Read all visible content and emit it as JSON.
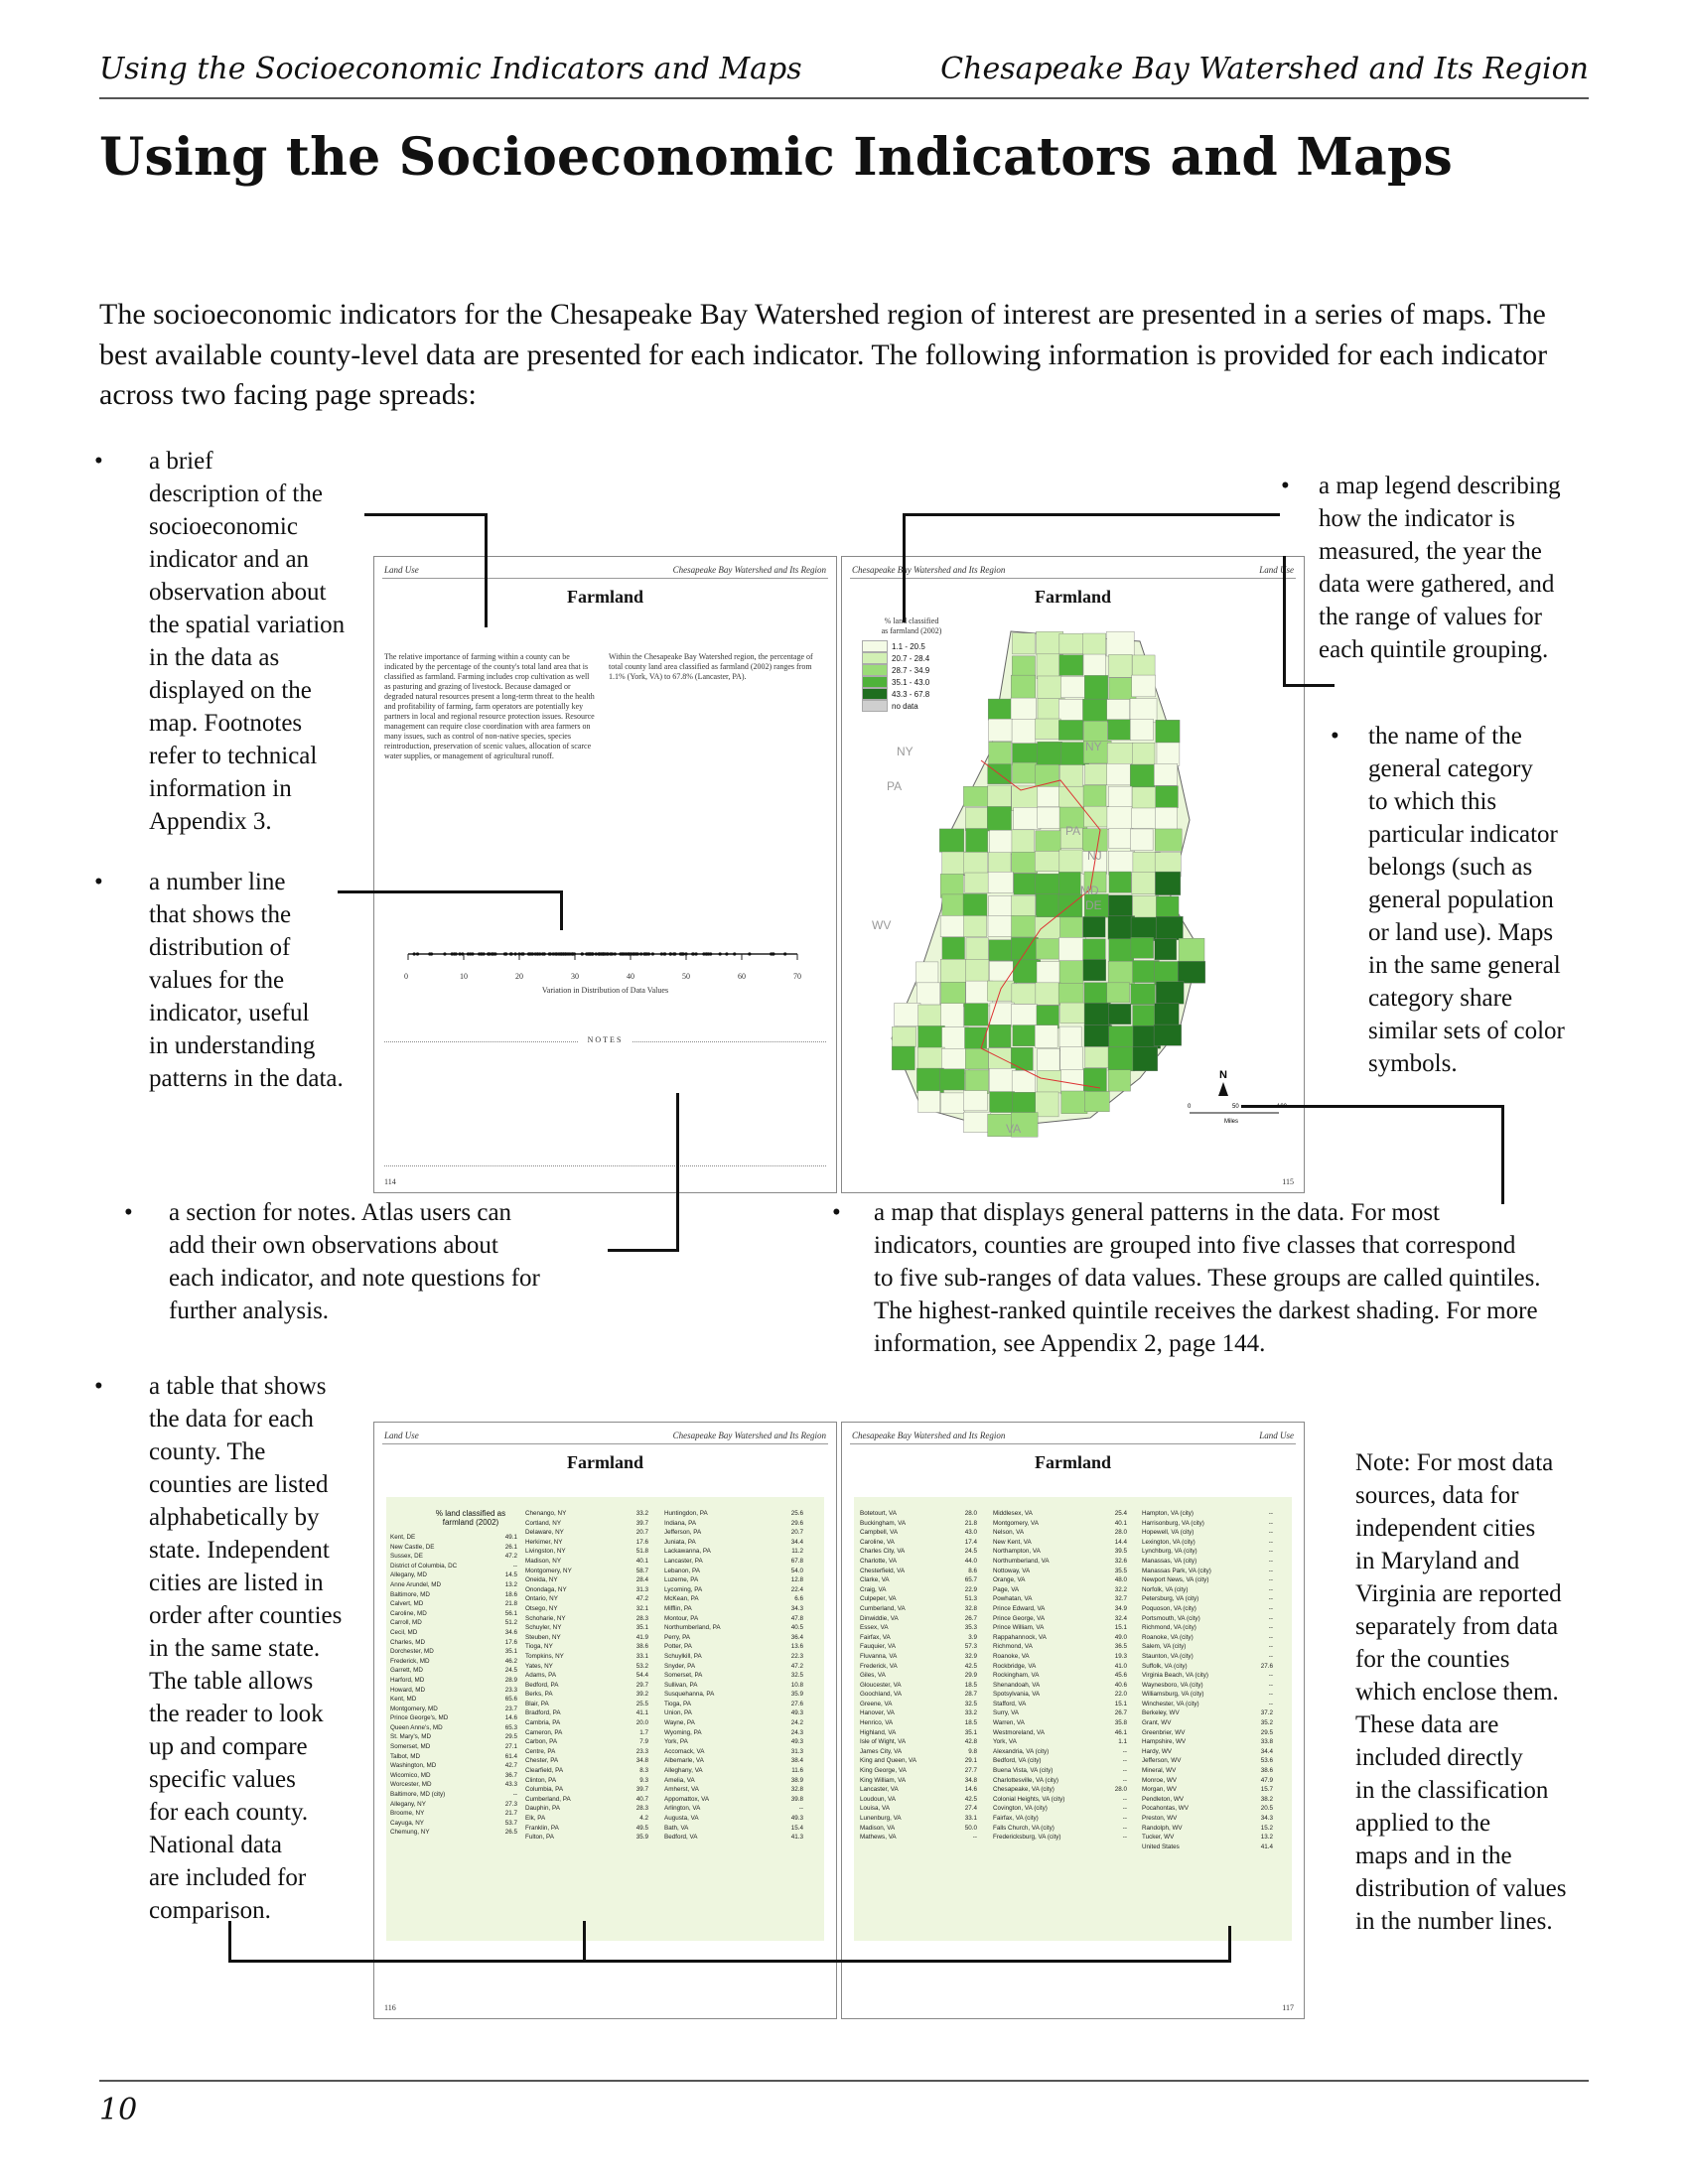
{
  "header": {
    "left": "Using the Socioeconomic Indicators and Maps",
    "right": "Chesapeake Bay Watershed and Its Region"
  },
  "title": "Using the Socioeconomic Indicators and Maps",
  "intro": "The socioeconomic indicators for the Chesapeake Bay Watershed region of interest are presented in a series of maps. The best available county-level data are presented for each indicator. The following information is provided for each indicator across two facing page spreads:",
  "bullets": {
    "description": "a brief\ndescription of the\nsocioeconomic\nindicator and an\nobservation about\nthe spatial variation\nin the data as\ndisplayed on the\nmap. Footnotes\nrefer to technical\ninformation in\nAppendix 3.",
    "number_line": "a number line\nthat shows the\ndistribution of\nvalues for the\nindicator, useful\nin understanding\npatterns in the data.",
    "legend": "a map legend describing\nhow the indicator is\nmeasured, the year the\ndata were gathered, and\nthe range of values for\neach quintile grouping.",
    "category": "the name of the\ngeneral category\nto which this\nparticular indicator\nbelongs (such as\ngeneral population\nor land use). Maps\nin the same general\ncategory share\nsimilar sets of color\nsymbols.",
    "notes": "a section for notes. Atlas users can\nadd their own observations about\neach indicator, and note questions for\nfurther analysis.",
    "map": "a map that displays general patterns in the data. For most\nindicators, counties are grouped into five classes that correspond\nto five sub-ranges of data values. These groups are called quintiles.\nThe highest-ranked quintile receives the darkest shading. For more\ninformation, see Appendix 2, page 144.",
    "table": "a table that shows\nthe data for each\ncounty. The\ncounties are listed\nalphabetically by\nstate. Independent\ncities are listed in\norder after counties\nin the same state.\nThe table allows\nthe reader to look\nup and compare\nspecific values\nfor each county.\nNational data\nare included for\ncomparison."
  },
  "side_note": "Note: For most data\nsources, data for\nindependent cities\nin Maryland and\nVirginia are reported\nseparately from data\nfor the counties\nwhich enclose them.\nThese data are\nincluded directly\nin the classification\napplied to the\nmaps  and in the\ndistribution of values\nin the number lines.",
  "spread1": {
    "left_header": "Land Use",
    "right_header_left": "Chesapeake Bay Watershed and Its Region",
    "map_header_left": "Chesapeake Bay Watershed and Its Region",
    "map_header_right": "Land Use",
    "page_title": "Farmland",
    "desc_left": "The relative importance of farming within a county can be indicated by the percentage of the county's total land area that is classified as farmland. Farming includes crop cultivation as well as pasturing and grazing of livestock. Because damaged or degraded natural resources present a long-term threat to the health and profitability of farming, farm operators are potentially key partners in local and regional resource protection issues. Resource management can require close coordination with area farmers on many issues, such as control of non-native species, species reintroduction, preservation of scenic values, allocation of scarce water supplies, or management of agricultural runoff.",
    "desc_right": "Within the Chesapeake Bay Watershed region, the percentage of total county land area classified as farmland (2002) ranges from 1.1% (York, VA) to 67.8% (Lancaster, PA).",
    "axis_ticks": [
      "0",
      "10",
      "20",
      "30",
      "40",
      "50",
      "60",
      "70"
    ],
    "axis_label": "Variation in Distribution of Data Values",
    "notes_label": "NOTES",
    "page_left": "114",
    "page_right": "115",
    "legend_title": "% land classified\nas farmland (2002)",
    "legend": [
      {
        "label": "1.1 - 20.5",
        "color": "#f4fbe6"
      },
      {
        "label": "20.7 - 28.4",
        "color": "#d2f0b4"
      },
      {
        "label": "28.7 - 34.9",
        "color": "#9bdc78"
      },
      {
        "label": "35.1 - 43.0",
        "color": "#4fb23a"
      },
      {
        "label": "43.3 - 67.8",
        "color": "#1f6e1f"
      },
      {
        "label": "no data",
        "color": "#cfcfcf"
      }
    ],
    "states": [
      "NY",
      "NY",
      "PA",
      "PA",
      "NJ",
      "DE",
      "WV",
      "VA",
      "MD"
    ],
    "scale_labels": [
      "0",
      "50",
      "100"
    ],
    "scale_unit": "Miles",
    "north": "N"
  },
  "spread2": {
    "left_header": "Land Use",
    "right_header_left": "Chesapeake Bay Watershed and Its Region",
    "right_header_right": "Land Use",
    "page_title": "Farmland",
    "table_caption": "% land classified as\nfarmland (2002)",
    "page_left": "116",
    "page_right": "117",
    "col1": [
      [
        "Kent, DE",
        "49.1"
      ],
      [
        "New Castle, DE",
        "26.1"
      ],
      [
        "Sussex, DE",
        "47.2"
      ],
      [
        "District of Columbia, DC",
        "--"
      ],
      [
        "Allegany, MD",
        "14.5"
      ],
      [
        "Anne Arundel, MD",
        "13.2"
      ],
      [
        "Baltimore, MD",
        "18.6"
      ],
      [
        "Calvert, MD",
        "21.8"
      ],
      [
        "Caroline, MD",
        "56.1"
      ],
      [
        "Carroll, MD",
        "51.2"
      ],
      [
        "Cecil, MD",
        "34.6"
      ],
      [
        "Charles, MD",
        "17.6"
      ],
      [
        "Dorchester, MD",
        "35.1"
      ],
      [
        "Frederick, MD",
        "46.2"
      ],
      [
        "Garrett, MD",
        "24.5"
      ],
      [
        "Harford, MD",
        "28.9"
      ],
      [
        "Howard, MD",
        "23.3"
      ],
      [
        "Kent, MD",
        "65.6"
      ],
      [
        "Montgomery, MD",
        "23.7"
      ],
      [
        "Prince George's, MD",
        "14.6"
      ],
      [
        "Queen Anne's, MD",
        "65.3"
      ],
      [
        "St. Mary's, MD",
        "29.5"
      ],
      [
        "Somerset, MD",
        "27.1"
      ],
      [
        "Talbot, MD",
        "61.4"
      ],
      [
        "Washington, MD",
        "42.7"
      ],
      [
        "Wicomico, MD",
        "36.7"
      ],
      [
        "Worcester, MD",
        "43.3"
      ],
      [
        "Baltimore, MD (city)",
        "--"
      ],
      [
        "Allegany, NY",
        "27.3"
      ],
      [
        "Broome, NY",
        "21.7"
      ],
      [
        "Cayuga, NY",
        "53.7"
      ],
      [
        "Chemung, NY",
        "26.5"
      ]
    ],
    "col2": [
      [
        "Chenango, NY",
        "33.2"
      ],
      [
        "Cortland, NY",
        "39.7"
      ],
      [
        "Delaware, NY",
        "20.7"
      ],
      [
        "Herkimer, NY",
        "17.6"
      ],
      [
        "Livingston, NY",
        "51.8"
      ],
      [
        "Madison, NY",
        "40.1"
      ],
      [
        "Montgomery, NY",
        "58.7"
      ],
      [
        "Oneida, NY",
        "28.4"
      ],
      [
        "Onondaga, NY",
        "31.3"
      ],
      [
        "Ontario, NY",
        "47.2"
      ],
      [
        "Otsego, NY",
        "32.1"
      ],
      [
        "Schoharie, NY",
        "28.3"
      ],
      [
        "Schuyler, NY",
        "35.1"
      ],
      [
        "Steuben, NY",
        "41.9"
      ],
      [
        "Tioga, NY",
        "38.6"
      ],
      [
        "Tompkins, NY",
        "33.1"
      ],
      [
        "Yates, NY",
        "53.2"
      ],
      [
        "Adams, PA",
        "54.4"
      ],
      [
        "Bedford, PA",
        "29.7"
      ],
      [
        "Berks, PA",
        "39.2"
      ],
      [
        "Blair, PA",
        "25.5"
      ],
      [
        "Bradford, PA",
        "41.1"
      ],
      [
        "Cambria, PA",
        "20.0"
      ],
      [
        "Cameron, PA",
        "1.7"
      ],
      [
        "Carbon, PA",
        "7.9"
      ],
      [
        "Centre, PA",
        "23.3"
      ],
      [
        "Chester, PA",
        "34.8"
      ],
      [
        "Clearfield, PA",
        "8.3"
      ],
      [
        "Clinton, PA",
        "9.3"
      ],
      [
        "Columbia, PA",
        "39.7"
      ],
      [
        "Cumberland, PA",
        "40.7"
      ],
      [
        "Dauphin, PA",
        "28.3"
      ],
      [
        "Elk, PA",
        "4.2"
      ],
      [
        "Franklin, PA",
        "49.5"
      ],
      [
        "Fulton, PA",
        "35.9"
      ]
    ],
    "col3": [
      [
        "Huntingdon, PA",
        "25.6"
      ],
      [
        "Indiana, PA",
        "29.6"
      ],
      [
        "Jefferson, PA",
        "20.7"
      ],
      [
        "Juniata, PA",
        "34.4"
      ],
      [
        "Lackawanna, PA",
        "11.2"
      ],
      [
        "Lancaster, PA",
        "67.8"
      ],
      [
        "Lebanon, PA",
        "54.0"
      ],
      [
        "Luzerne, PA",
        "12.8"
      ],
      [
        "Lycoming, PA",
        "22.4"
      ],
      [
        "McKean, PA",
        "6.6"
      ],
      [
        "Mifflin, PA",
        "34.3"
      ],
      [
        "Montour, PA",
        "47.8"
      ],
      [
        "Northumberland, PA",
        "40.5"
      ],
      [
        "Perry, PA",
        "36.4"
      ],
      [
        "Potter, PA",
        "13.6"
      ],
      [
        "Schuylkill, PA",
        "22.3"
      ],
      [
        "Snyder, PA",
        "47.2"
      ],
      [
        "Somerset, PA",
        "32.5"
      ],
      [
        "Sullivan, PA",
        "10.8"
      ],
      [
        "Susquehanna, PA",
        "35.9"
      ],
      [
        "Tioga, PA",
        "27.6"
      ],
      [
        "Union, PA",
        "49.3"
      ],
      [
        "Wayne, PA",
        "24.2"
      ],
      [
        "Wyoming, PA",
        "24.3"
      ],
      [
        "York, PA",
        "49.3"
      ],
      [
        "Accomack, VA",
        "31.3"
      ],
      [
        "Albemarle, VA",
        "38.4"
      ],
      [
        "Alleghany, VA",
        "11.6"
      ],
      [
        "Amelia, VA",
        "38.9"
      ],
      [
        "Amherst, VA",
        "32.8"
      ],
      [
        "Appomattox, VA",
        "39.8"
      ],
      [
        "Arlington, VA",
        "--"
      ],
      [
        "Augusta, VA",
        "49.3"
      ],
      [
        "Bath, VA",
        "15.4"
      ],
      [
        "Bedford, VA",
        "41.3"
      ]
    ],
    "col4": [
      [
        "Botetourt, VA",
        "28.0"
      ],
      [
        "Buckingham, VA",
        "21.8"
      ],
      [
        "Campbell, VA",
        "43.0"
      ],
      [
        "Caroline, VA",
        "17.4"
      ],
      [
        "Charles City, VA",
        "24.5"
      ],
      [
        "Charlotte, VA",
        "44.0"
      ],
      [
        "Chesterfield, VA",
        "8.6"
      ],
      [
        "Clarke, VA",
        "65.7"
      ],
      [
        "Craig, VA",
        "22.9"
      ],
      [
        "Culpeper, VA",
        "51.3"
      ],
      [
        "Cumberland, VA",
        "32.8"
      ],
      [
        "Dinwiddie, VA",
        "26.7"
      ],
      [
        "Essex, VA",
        "35.3"
      ],
      [
        "Fairfax, VA",
        "3.9"
      ],
      [
        "Fauquier, VA",
        "57.3"
      ],
      [
        "Fluvanna, VA",
        "32.9"
      ],
      [
        "Frederick, VA",
        "42.5"
      ],
      [
        "Giles, VA",
        "29.9"
      ],
      [
        "Gloucester, VA",
        "18.5"
      ],
      [
        "Goochland, VA",
        "28.7"
      ],
      [
        "Greene, VA",
        "32.5"
      ],
      [
        "Hanover, VA",
        "33.2"
      ],
      [
        "Henrico, VA",
        "18.5"
      ],
      [
        "Highland, VA",
        "35.1"
      ],
      [
        "Isle of Wight, VA",
        "42.8"
      ],
      [
        "James City, VA",
        "9.8"
      ],
      [
        "King and Queen, VA",
        "29.1"
      ],
      [
        "King George, VA",
        "27.7"
      ],
      [
        "King William, VA",
        "34.8"
      ],
      [
        "Lancaster, VA",
        "14.6"
      ],
      [
        "Loudoun, VA",
        "42.5"
      ],
      [
        "Louisa, VA",
        "27.4"
      ],
      [
        "Lunenburg, VA",
        "33.1"
      ],
      [
        "Madison, VA",
        "50.0"
      ],
      [
        "Mathews, VA",
        "--"
      ]
    ],
    "col5": [
      [
        "Middlesex, VA",
        "25.4"
      ],
      [
        "Montgomery, VA",
        "40.1"
      ],
      [
        "Nelson, VA",
        "28.0"
      ],
      [
        "New Kent, VA",
        "14.4"
      ],
      [
        "Northampton, VA",
        "39.5"
      ],
      [
        "Northumberland, VA",
        "32.6"
      ],
      [
        "Nottoway, VA",
        "35.5"
      ],
      [
        "Orange, VA",
        "48.0"
      ],
      [
        "Page, VA",
        "32.2"
      ],
      [
        "Powhatan, VA",
        "32.7"
      ],
      [
        "Prince Edward, VA",
        "34.9"
      ],
      [
        "Prince George, VA",
        "32.4"
      ],
      [
        "Prince William, VA",
        "15.1"
      ],
      [
        "Rappahannock, VA",
        "49.0"
      ],
      [
        "Richmond, VA",
        "36.5"
      ],
      [
        "Roanoke, VA",
        "19.3"
      ],
      [
        "Rockbridge, VA",
        "41.0"
      ],
      [
        "Rockingham, VA",
        "45.6"
      ],
      [
        "Shenandoah, VA",
        "40.6"
      ],
      [
        "Spotsylvania, VA",
        "22.0"
      ],
      [
        "Stafford, VA",
        "15.1"
      ],
      [
        "Surry, VA",
        "26.7"
      ],
      [
        "Warren, VA",
        "35.8"
      ],
      [
        "Westmoreland, VA",
        "46.1"
      ],
      [
        "York, VA",
        "1.1"
      ],
      [
        "Alexandria, VA (city)",
        "--"
      ],
      [
        "Bedford, VA (city)",
        "--"
      ],
      [
        "Buena Vista, VA (city)",
        "--"
      ],
      [
        "Charlottesville, VA (city)",
        "--"
      ],
      [
        "Chesapeake, VA (city)",
        "28.0"
      ],
      [
        "Colonial Heights, VA (city)",
        "--"
      ],
      [
        "Covington, VA (city)",
        "--"
      ],
      [
        "Fairfax, VA (city)",
        "--"
      ],
      [
        "Falls Church, VA (city)",
        "--"
      ],
      [
        "Fredericksburg, VA (city)",
        "--"
      ]
    ],
    "col6": [
      [
        "Hampton, VA (city)",
        "--"
      ],
      [
        "Harrisonburg, VA (city)",
        "--"
      ],
      [
        "Hopewell, VA (city)",
        "--"
      ],
      [
        "Lexington, VA (city)",
        "--"
      ],
      [
        "Lynchburg, VA (city)",
        "--"
      ],
      [
        "Manassas, VA (city)",
        "--"
      ],
      [
        "Manassas Park, VA (city)",
        "--"
      ],
      [
        "Newport News, VA (city)",
        "--"
      ],
      [
        "Norfolk, VA (city)",
        "--"
      ],
      [
        "Petersburg, VA (city)",
        "--"
      ],
      [
        "Poquoson, VA (city)",
        "--"
      ],
      [
        "Portsmouth, VA (city)",
        "--"
      ],
      [
        "Richmond, VA (city)",
        "--"
      ],
      [
        "Roanoke, VA (city)",
        "--"
      ],
      [
        "Salem, VA (city)",
        "--"
      ],
      [
        "Staunton, VA (city)",
        "--"
      ],
      [
        "Suffolk, VA (city)",
        "27.6"
      ],
      [
        "Virginia Beach, VA (city)",
        "--"
      ],
      [
        "Waynesboro, VA (city)",
        "--"
      ],
      [
        "Williamsburg, VA (city)",
        "--"
      ],
      [
        "Winchester, VA (city)",
        "--"
      ],
      [
        "Berkeley, WV",
        "37.2"
      ],
      [
        "Grant, WV",
        "35.2"
      ],
      [
        "Greenbrier, WV",
        "29.5"
      ],
      [
        "Hampshire, WV",
        "33.8"
      ],
      [
        "Hardy, WV",
        "34.4"
      ],
      [
        "Jefferson, WV",
        "53.6"
      ],
      [
        "Mineral, WV",
        "38.6"
      ],
      [
        "Monroe, WV",
        "47.9"
      ],
      [
        "Morgan, WV",
        "15.7"
      ],
      [
        "Pendleton, WV",
        "38.2"
      ],
      [
        "Pocahontas, WV",
        "20.5"
      ],
      [
        "Preston, WV",
        "34.3"
      ],
      [
        "Randolph, WV",
        "15.2"
      ],
      [
        "Tucker, WV",
        "13.2"
      ],
      [
        "",
        ""
      ],
      [
        "United States",
        "41.4"
      ]
    ]
  },
  "page_number": "10"
}
